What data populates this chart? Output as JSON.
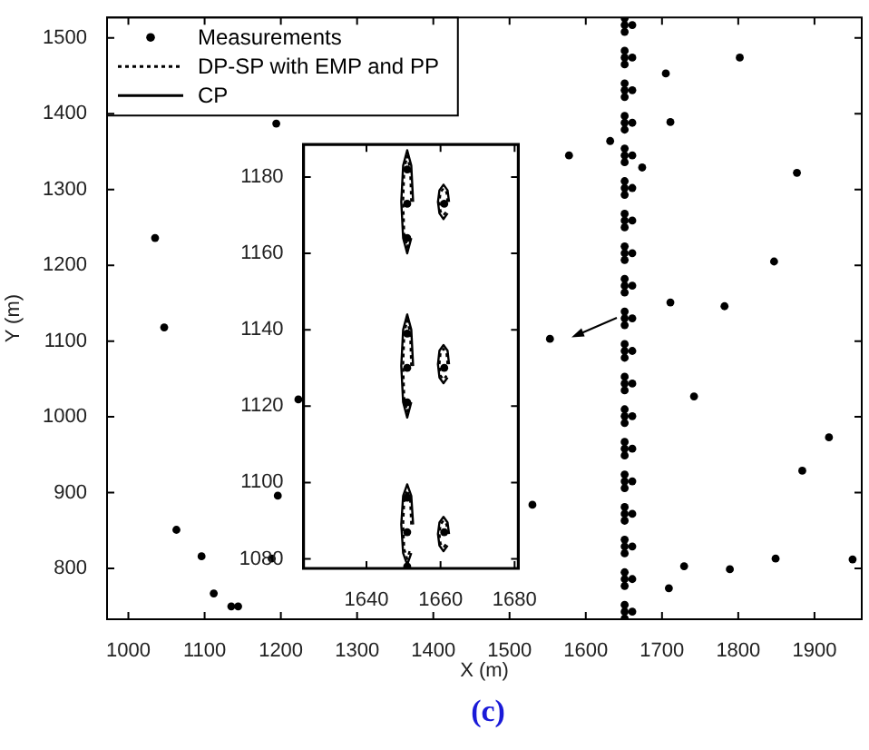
{
  "chart_data": [
    {
      "type": "scatter",
      "xlabel": "X (m)",
      "ylabel": "Y (m)",
      "annotations": [
        "(c)"
      ],
      "xlim": [
        972,
        1962
      ],
      "ylim": [
        733,
        1527
      ],
      "xticks": [
        1000,
        1100,
        1200,
        1300,
        1400,
        1500,
        1600,
        1700,
        1800,
        1900
      ],
      "yticks": [
        800,
        900,
        1000,
        1100,
        1200,
        1300,
        1400,
        1500
      ],
      "legend": "top left",
      "series": [
        {
          "name": "Measurements",
          "type": "scatter",
          "marker": "circle",
          "color": "#000000",
          "x": [
            1194,
            1035,
            1047,
            1063,
            1096,
            1112,
            1135,
            1144,
            1188,
            1196,
            1223,
            1578,
            1632,
            1705,
            1802,
            1711,
            1674,
            1877,
            1847,
            1711,
            1782,
            1553,
            1742,
            1919,
            1884,
            1530,
            1729,
            1789,
            1849,
            1950,
            1709,
            1651,
            1651,
            1651,
            1661,
            1651,
            1651,
            1651,
            1661,
            1651,
            1651,
            1651,
            1661,
            1651,
            1651,
            1651,
            1661,
            1651,
            1651,
            1651,
            1661,
            1651,
            1651,
            1651,
            1661,
            1651,
            1651,
            1651,
            1661,
            1651,
            1651,
            1651,
            1661,
            1651,
            1651,
            1651,
            1661,
            1651,
            1651,
            1651,
            1661,
            1651,
            1651,
            1651,
            1661,
            1651,
            1651,
            1651,
            1661,
            1651,
            1651,
            1651,
            1661,
            1651,
            1651,
            1651,
            1661,
            1651,
            1651,
            1651,
            1661,
            1651,
            1651,
            1651,
            1661,
            1651,
            1651,
            1651,
            1661,
            1651,
            1651,
            1651,
            1661,
            1651,
            1651,
            1651,
            1661
          ],
          "values": [
            1387,
            1236,
            1118,
            851,
            816,
            767,
            750,
            750,
            813,
            896,
            1023,
            1345,
            1364,
            1453,
            1474,
            1389,
            1329,
            1322,
            1205,
            1151,
            1146,
            1103,
            1027,
            973,
            929,
            884,
            803,
            799,
            813,
            812,
            774,
            734,
            743,
            752,
            743,
            777,
            786,
            795,
            786,
            820,
            829,
            838,
            829,
            863,
            872,
            881,
            872,
            906,
            915,
            924,
            915,
            949,
            958,
            967,
            958,
            992,
            1001,
            1010,
            1001,
            1035,
            1044,
            1053,
            1044,
            1078,
            1087,
            1096,
            1087,
            1121,
            1130,
            1139,
            1130,
            1164,
            1173,
            1182,
            1173,
            1207,
            1216,
            1225,
            1216,
            1250,
            1259,
            1268,
            1259,
            1293,
            1302,
            1311,
            1302,
            1336,
            1345,
            1354,
            1345,
            1379,
            1388,
            1397,
            1388,
            1422,
            1431,
            1440,
            1431,
            1465,
            1474,
            1483,
            1474,
            1508,
            1517,
            1526,
            1517
          ]
        }
      ]
    },
    {
      "type": "scatter",
      "xlim": [
        1623,
        1681
      ],
      "ylim": [
        1077.5,
        1188.5
      ],
      "xticks": [
        1640,
        1660,
        1680
      ],
      "yticks": [
        1080,
        1100,
        1120,
        1140,
        1160,
        1180
      ],
      "series": [
        {
          "type": "scatter",
          "marker": "circle",
          "color": "#000000",
          "x": [
            1651,
            1651,
            1651,
            1661,
            1651,
            1651,
            1651,
            1661,
            1651,
            1651,
            1651,
            1661
          ],
          "values": [
            1078,
            1087,
            1096,
            1087,
            1121,
            1130,
            1139,
            1130,
            1164,
            1173,
            1182,
            1173
          ]
        },
        {
          "name": "DP-SP with EMP and PP",
          "type": "line",
          "marker": "none",
          "line_style": "dotted",
          "color": "#000000",
          "x": [
            1652.1,
            1651.8,
            1651,
            1650.2,
            1649.9,
            1650.2,
            1651,
            1651.8
          ],
          "values": [
            1173.5,
            1182,
            1185.5,
            1182,
            1173.5,
            1165,
            1161.5,
            1165
          ]
        },
        {
          "type": "line",
          "marker": "none",
          "line_style": "dotted",
          "color": "#000000",
          "x": [
            1652.1,
            1651.8,
            1651,
            1650.2,
            1649.9,
            1650.2,
            1651,
            1651.8
          ],
          "values": [
            1130.5,
            1139,
            1142.5,
            1139,
            1130.5,
            1122,
            1118.5,
            1122
          ]
        },
        {
          "type": "line",
          "marker": "none",
          "line_style": "dotted",
          "color": "#000000",
          "x": [
            1652.1,
            1651.8,
            1651,
            1650.2,
            1649.9,
            1650.2,
            1651,
            1651.8
          ],
          "values": [
            1089,
            1095.5,
            1098,
            1095.5,
            1089,
            1082.5,
            1080,
            1082.5
          ]
        },
        {
          "type": "line",
          "marker": "none",
          "line_style": "dotted",
          "color": "#000000",
          "x": [
            1661.9,
            1661.6,
            1660.8,
            1660,
            1659.7,
            1660,
            1660.8,
            1661.6
          ],
          "values": [
            1173.5,
            1176,
            1177,
            1176,
            1173.5,
            1171,
            1170,
            1171
          ]
        },
        {
          "type": "line",
          "marker": "none",
          "line_style": "dotted",
          "color": "#000000",
          "x": [
            1661.9,
            1661.6,
            1660.8,
            1660,
            1659.7,
            1660,
            1660.8,
            1661.6
          ],
          "values": [
            1131,
            1134,
            1135,
            1134,
            1131,
            1128,
            1127,
            1128
          ]
        },
        {
          "type": "line",
          "marker": "none",
          "line_style": "dotted",
          "color": "#000000",
          "x": [
            1661.9,
            1661.6,
            1660.8,
            1660,
            1659.7,
            1660,
            1660.8,
            1661.6
          ],
          "values": [
            1086.5,
            1089,
            1090,
            1089,
            1086.5,
            1084,
            1083,
            1084
          ]
        },
        {
          "name": "CP",
          "type": "line",
          "marker": "none",
          "line_style": "solid",
          "color": "#000000",
          "x": [
            1652.6,
            1652.1,
            1651,
            1649.9,
            1649.4,
            1649.9,
            1651,
            1652.1
          ],
          "values": [
            1173.5,
            1183,
            1187,
            1183,
            1173.5,
            1164,
            1160,
            1164
          ]
        },
        {
          "type": "line",
          "marker": "none",
          "line_style": "solid",
          "color": "#000000",
          "x": [
            1652.6,
            1652.1,
            1651,
            1649.9,
            1649.4,
            1649.9,
            1651,
            1652.1
          ],
          "values": [
            1130.5,
            1140,
            1144,
            1140,
            1130.5,
            1121,
            1117,
            1121
          ]
        },
        {
          "type": "line",
          "marker": "none",
          "line_style": "solid",
          "color": "#000000",
          "x": [
            1652.6,
            1652.1,
            1651,
            1649.9,
            1649.4,
            1649.9,
            1651,
            1652.1
          ],
          "values": [
            1089,
            1096.5,
            1099.5,
            1096.5,
            1089,
            1081.5,
            1078.5,
            1081.5
          ]
        },
        {
          "type": "line",
          "marker": "none",
          "line_style": "solid",
          "color": "#000000",
          "x": [
            1662.3,
            1661.9,
            1660.8,
            1659.7,
            1659.3,
            1659.7,
            1660.8,
            1661.9
          ],
          "values": [
            1173.5,
            1176.5,
            1178,
            1176.5,
            1173.5,
            1170.5,
            1169,
            1170.5
          ]
        },
        {
          "type": "line",
          "marker": "none",
          "line_style": "solid",
          "color": "#000000",
          "x": [
            1662.3,
            1661.9,
            1660.8,
            1659.7,
            1659.3,
            1659.7,
            1660.8,
            1661.9
          ],
          "values": [
            1131,
            1134.5,
            1136,
            1134.5,
            1131,
            1127.5,
            1126,
            1127.5
          ]
        },
        {
          "type": "line",
          "marker": "none",
          "line_style": "solid",
          "color": "#000000",
          "x": [
            1662.3,
            1661.9,
            1660.8,
            1659.7,
            1659.3,
            1659.7,
            1660.8,
            1661.9
          ],
          "values": [
            1086.5,
            1089.5,
            1091,
            1089.5,
            1086.5,
            1083.5,
            1082,
            1083.5
          ]
        }
      ]
    }
  ]
}
